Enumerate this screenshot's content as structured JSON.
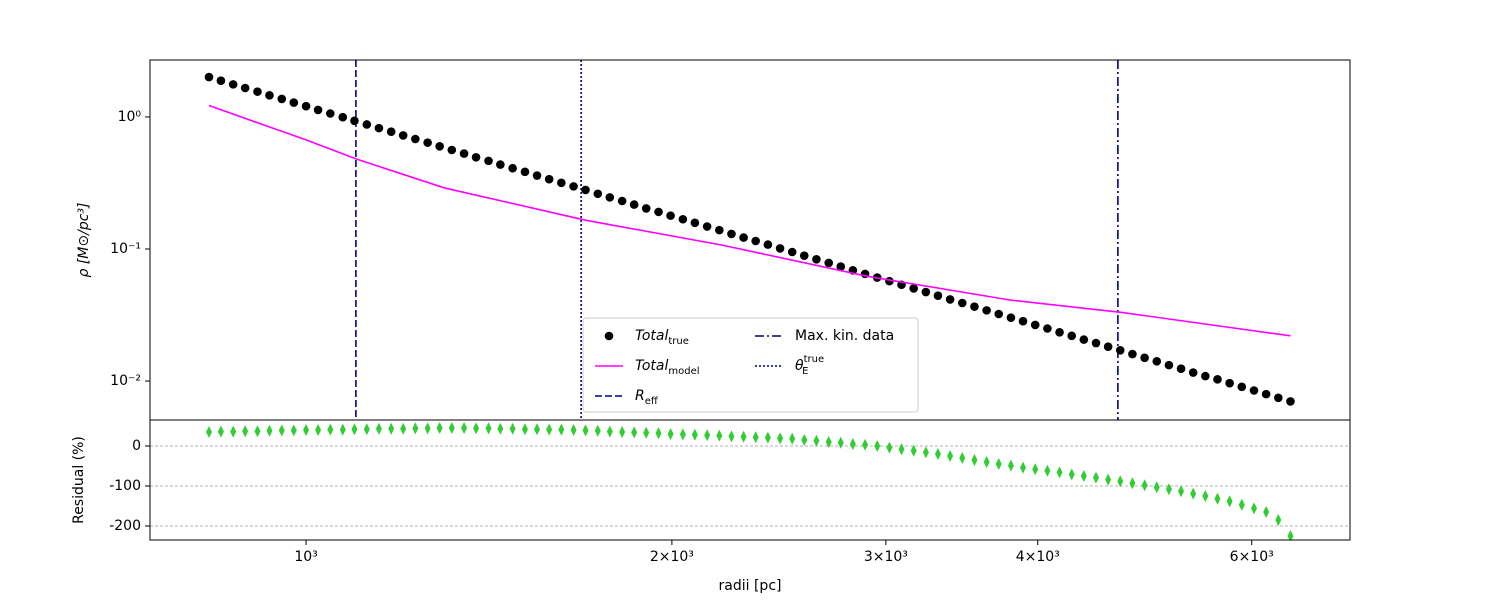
{
  "chart_data": [
    {
      "type": "scatter",
      "xscale": "log",
      "yscale": "log",
      "ylabel": "ρ [M⊙/pc³]",
      "xlim": [
        744,
        7228
      ],
      "ylim": [
        0.00507,
        2.7
      ],
      "yticks": [
        {
          "value": 1,
          "label": "10⁰"
        },
        {
          "value": 0.1,
          "label": "10⁻¹"
        },
        {
          "value": 0.01,
          "label": "10⁻²"
        }
      ],
      "legend": "lower center",
      "series": [
        {
          "name": "Total",
          "name_sub": "true",
          "type": "scatter",
          "marker": "circle",
          "color": "#000000",
          "x": [
            832,
            851,
            871,
            891,
            912,
            933,
            955,
            977,
            1000,
            1023,
            1047,
            1072,
            1096,
            1122,
            1148,
            1175,
            1202,
            1230,
            1259,
            1288,
            1318,
            1349,
            1380,
            1413,
            1445,
            1479,
            1514,
            1549,
            1585,
            1622,
            1660,
            1698,
            1738,
            1778,
            1820,
            1862,
            1905,
            1950,
            1995,
            2042,
            2089,
            2138,
            2188,
            2239,
            2291,
            2344,
            2399,
            2455,
            2512,
            2570,
            2630,
            2692,
            2754,
            2818,
            2884,
            2951,
            3020,
            3090,
            3162,
            3236,
            3311,
            3388,
            3467,
            3548,
            3631,
            3715,
            3802,
            3890,
            3981,
            4074,
            4169,
            4266,
            4365,
            4467,
            4571,
            4677,
            4786,
            4898,
            5012,
            5129,
            5248,
            5370,
            5495,
            5623,
            5754,
            5888,
            6026,
            6166,
            6310,
            6457
          ],
          "values": [
            2.004,
            1.881,
            1.765,
            1.657,
            1.555,
            1.459,
            1.369,
            1.285,
            1.206,
            1.131,
            1.062,
            0.996,
            0.935,
            0.877,
            0.823,
            0.773,
            0.725,
            0.681,
            0.639,
            0.599,
            0.562,
            0.528,
            0.495,
            0.465,
            0.436,
            0.409,
            0.384,
            0.36,
            0.338,
            0.317,
            0.298,
            0.28,
            0.262,
            0.246,
            0.231,
            0.217,
            0.203,
            0.191,
            0.179,
            0.168,
            0.158,
            0.148,
            0.139,
            0.13,
            0.122,
            0.115,
            0.108,
            0.101,
            0.0949,
            0.089,
            0.0836,
            0.0784,
            0.0736,
            0.069,
            0.0648,
            0.0608,
            0.0571,
            0.0536,
            0.0503,
            0.0472,
            0.0443,
            0.0415,
            0.039,
            0.0366,
            0.0343,
            0.0322,
            0.0302,
            0.0284,
            0.0266,
            0.025,
            0.0234,
            0.022,
            0.0206,
            0.0194,
            0.0182,
            0.0171,
            0.016,
            0.015,
            0.0141,
            0.0132,
            0.0124,
            0.0116,
            0.0109,
            0.0103,
            0.00963,
            0.00904,
            0.00848,
            0.00796,
            0.00747,
            0.00701
          ]
        },
        {
          "name": "Total",
          "name_sub": "model",
          "type": "line",
          "color": "#ff00ff",
          "x": [
            832,
            1000,
            1100,
            1300,
            1700,
            2200,
            2900,
            3800,
            4700,
            6457
          ],
          "values": [
            1.22,
            0.67,
            0.48,
            0.29,
            0.165,
            0.107,
            0.062,
            0.041,
            0.033,
            0.022
          ]
        }
      ],
      "vlines": [
        {
          "name": "R",
          "name_sub": "eff",
          "x": 1099,
          "color": "#000080",
          "dash": "dashed"
        },
        {
          "name": "Max. kin. data",
          "x": 4656,
          "color": "#000080",
          "dash": "dashdot"
        },
        {
          "name": "θ",
          "name_sub": "E",
          "name_sup": "true",
          "x": 1684,
          "color": "#000080",
          "dash": "dotted"
        }
      ]
    },
    {
      "type": "scatter",
      "xscale": "log",
      "ylabel": "Residual (%)",
      "xlabel": "radii [pc]",
      "xlim": [
        744,
        7228
      ],
      "ylim": [
        -235,
        65
      ],
      "xticks": [
        {
          "value": 1000,
          "label": "10³"
        },
        {
          "value": 2000,
          "label": "2×10³"
        },
        {
          "value": 3000,
          "label": "3×10³"
        },
        {
          "value": 4000,
          "label": "4×10³"
        },
        {
          "value": 6000,
          "label": "6×10³"
        }
      ],
      "yticks": [
        0,
        -100,
        -200
      ],
      "grid": true,
      "series": [
        {
          "type": "scatter",
          "marker": "diamond",
          "color": "#32cd32",
          "x": [
            832,
            851,
            871,
            891,
            912,
            933,
            955,
            977,
            1000,
            1023,
            1047,
            1072,
            1096,
            1122,
            1148,
            1175,
            1202,
            1230,
            1259,
            1288,
            1318,
            1349,
            1380,
            1413,
            1445,
            1479,
            1514,
            1549,
            1585,
            1622,
            1660,
            1698,
            1738,
            1778,
            1820,
            1862,
            1905,
            1950,
            1995,
            2042,
            2089,
            2138,
            2188,
            2239,
            2291,
            2344,
            2399,
            2455,
            2512,
            2570,
            2630,
            2692,
            2754,
            2818,
            2884,
            2951,
            3020,
            3090,
            3162,
            3236,
            3311,
            3388,
            3467,
            3548,
            3631,
            3715,
            3802,
            3890,
            3981,
            4074,
            4169,
            4266,
            4365,
            4467,
            4571,
            4677,
            4786,
            4898,
            5012,
            5129,
            5248,
            5370,
            5495,
            5623,
            5754,
            5888,
            6026,
            6166,
            6310,
            6457
          ],
          "values": [
            35,
            36,
            36,
            37,
            37,
            38,
            39,
            39,
            40,
            40,
            41,
            41,
            42,
            42,
            43,
            43,
            43,
            44,
            44,
            45,
            45,
            45,
            44,
            44,
            43,
            43,
            42,
            42,
            41,
            41,
            40,
            39,
            38,
            36,
            35,
            34,
            33,
            32,
            30,
            29,
            28,
            27,
            26,
            24,
            23,
            22,
            21,
            19,
            18,
            15,
            13,
            10,
            8,
            5,
            3,
            0,
            -4,
            -8,
            -12,
            -16,
            -20,
            -25,
            -30,
            -35,
            -40,
            -45,
            -49,
            -54,
            -58,
            -62,
            -66,
            -71,
            -75,
            -79,
            -84,
            -88,
            -93,
            -98,
            -103,
            -108,
            -113,
            -119,
            -125,
            -132,
            -138,
            -147,
            -156,
            -165,
            -185,
            -225
          ]
        }
      ]
    }
  ]
}
